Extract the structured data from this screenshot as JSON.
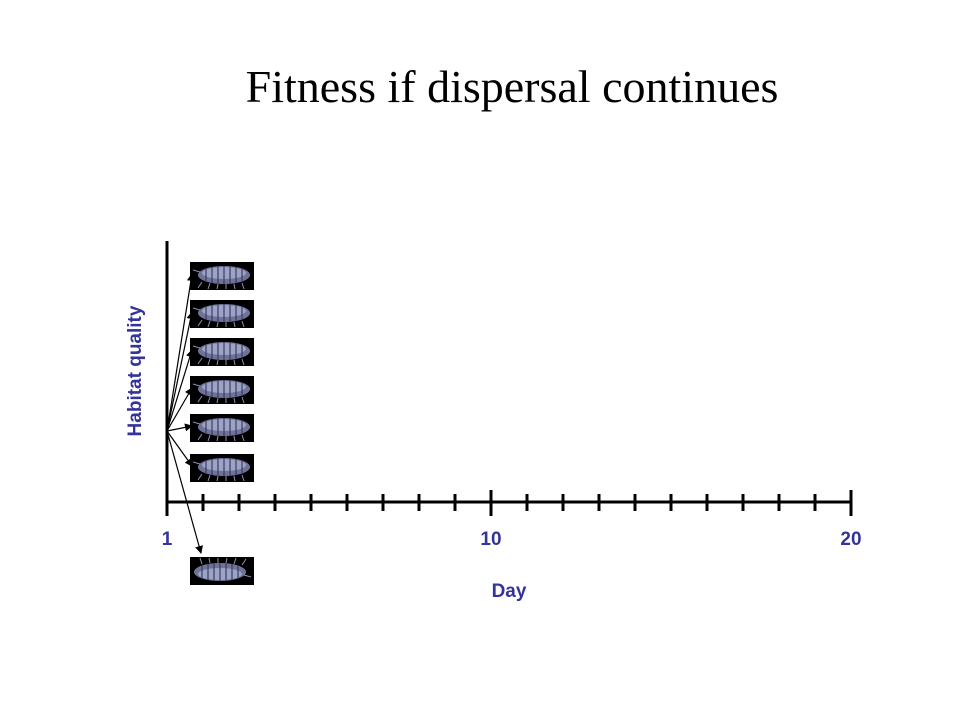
{
  "title": "Fitness if dispersal continues",
  "axes": {
    "ylabel": "Habitat quality",
    "xlabel": "Day",
    "x_tick_labels": [
      "1",
      "10",
      "20"
    ],
    "x_range": [
      1,
      20
    ]
  },
  "diagram": {
    "source_day": 1,
    "dispersers_on_axis": 6,
    "dispersers_below_axis": 1,
    "icon": "isopod-icon",
    "colors": {
      "axis": "#000000",
      "labels": "#333399",
      "icon_background": "#000000",
      "icon_body": "#7a7fa8"
    }
  }
}
